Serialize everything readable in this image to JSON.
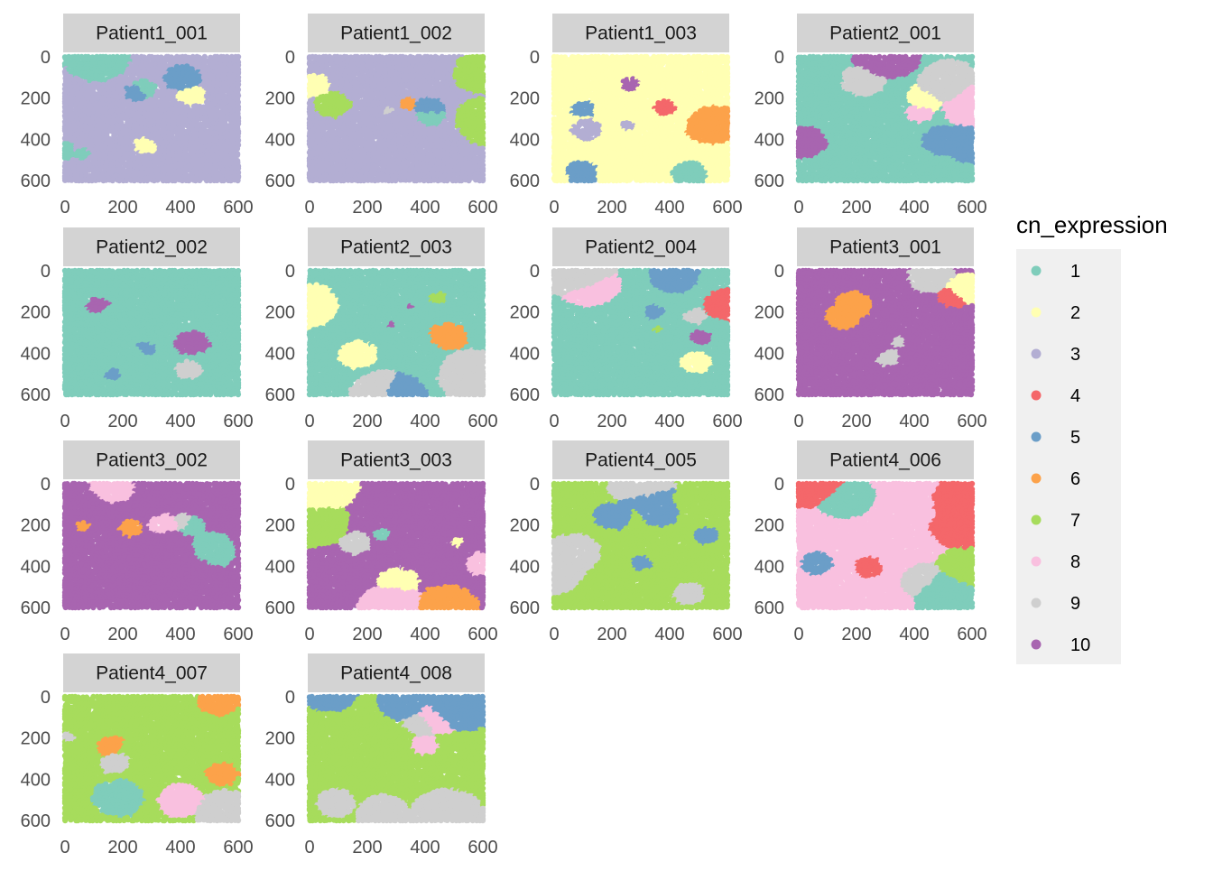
{
  "chart_data": {
    "type": "scatter",
    "subtype": "faceted spatial scatter (small multiples)",
    "x_ticks": [
      0,
      200,
      400,
      600
    ],
    "y_ticks": [
      0,
      200,
      400,
      600
    ],
    "xlim": [
      0,
      600
    ],
    "ylim": [
      600,
      0
    ],
    "y_reversed": true,
    "grid": false,
    "legend": {
      "title": "cn_expression",
      "position": "right",
      "entries": [
        {
          "label": "1",
          "color": "#7fcdbb"
        },
        {
          "label": "2",
          "color": "#ffffb3"
        },
        {
          "label": "3",
          "color": "#b3aed3"
        },
        {
          "label": "4",
          "color": "#f4676a"
        },
        {
          "label": "5",
          "color": "#6b9ec8"
        },
        {
          "label": "6",
          "color": "#fca24a"
        },
        {
          "label": "7",
          "color": "#a7dc5c"
        },
        {
          "label": "8",
          "color": "#f9c0df"
        },
        {
          "label": "9",
          "color": "#cfcfcf"
        },
        {
          "label": "10",
          "color": "#a865b0"
        }
      ]
    },
    "panels": [
      {
        "title": "Patient1_001",
        "dominant_clusters": [
          3,
          1,
          2,
          5
        ],
        "y_max": 600
      },
      {
        "title": "Patient1_002",
        "dominant_clusters": [
          3,
          5,
          9,
          2,
          1,
          6,
          7
        ],
        "y_max": 600
      },
      {
        "title": "Patient1_003",
        "dominant_clusters": [
          2,
          6,
          3,
          10,
          5,
          4,
          1
        ],
        "y_max": 600
      },
      {
        "title": "Patient2_001",
        "dominant_clusters": [
          1,
          10,
          5,
          9,
          2,
          8
        ],
        "y_max": 600
      },
      {
        "title": "Patient2_002",
        "dominant_clusters": [
          1,
          5,
          9,
          10
        ],
        "y_max": 600
      },
      {
        "title": "Patient2_003",
        "dominant_clusters": [
          1,
          5,
          9,
          10,
          7,
          6,
          2
        ],
        "y_max": 600
      },
      {
        "title": "Patient2_004",
        "dominant_clusters": [
          1,
          5,
          9,
          4,
          8,
          10,
          2,
          7
        ],
        "y_max": 600
      },
      {
        "title": "Patient3_001",
        "dominant_clusters": [
          10,
          4,
          2,
          6,
          9
        ],
        "y_max": 600
      },
      {
        "title": "Patient3_002",
        "dominant_clusters": [
          10,
          6,
          9,
          1,
          8
        ],
        "y_max": 600
      },
      {
        "title": "Patient3_003",
        "dominant_clusters": [
          10,
          9,
          1,
          7,
          6,
          8,
          2
        ],
        "y_max": 600
      },
      {
        "title": "Patient4_005",
        "dominant_clusters": [
          7,
          5,
          9
        ],
        "y_max": 600
      },
      {
        "title": "Patient4_006",
        "dominant_clusters": [
          8,
          9,
          7,
          4,
          1,
          5
        ],
        "y_max": 600
      },
      {
        "title": "Patient4_007",
        "dominant_clusters": [
          7,
          9,
          8,
          6,
          1
        ],
        "y_max": 600
      },
      {
        "title": "Patient4_008",
        "dominant_clusters": [
          7,
          5,
          9,
          8
        ],
        "y_max": 600
      }
    ]
  }
}
